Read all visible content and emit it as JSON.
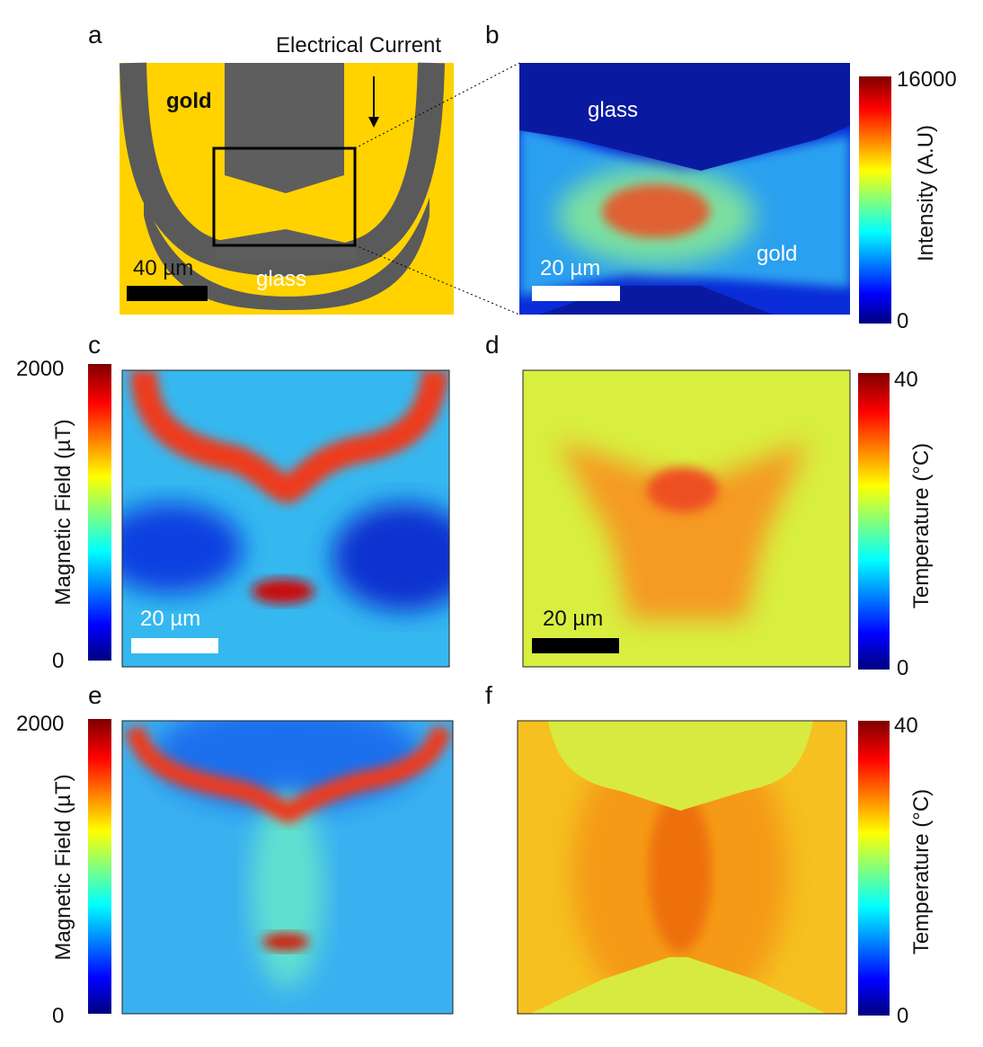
{
  "panels": [
    {
      "label": "a",
      "annotations": [
        "Electrical Current",
        "gold",
        "glass"
      ],
      "scale_bar": "40 µm"
    },
    {
      "label": "b",
      "annotations": [
        "glass",
        "gold"
      ],
      "scale_bar": "20 µm",
      "colorbar": {
        "label": "Intensity (A.U)",
        "max": 16000,
        "min": 0
      }
    },
    {
      "label": "c",
      "scale_bar": "20 µm",
      "colorbar": {
        "label": "Magnetic Field (µT)",
        "max": 2000,
        "min": 0
      }
    },
    {
      "label": "d",
      "scale_bar": "20 µm",
      "colorbar": {
        "label": "Temperature (°C)",
        "max": 40,
        "min": 0
      }
    },
    {
      "label": "e",
      "colorbar": {
        "label": "Magnetic Field (µT)",
        "max": 2000,
        "min": 0
      }
    },
    {
      "label": "f",
      "colorbar": {
        "label": "Temperature (°C)",
        "max": 40,
        "min": 0
      }
    }
  ]
}
